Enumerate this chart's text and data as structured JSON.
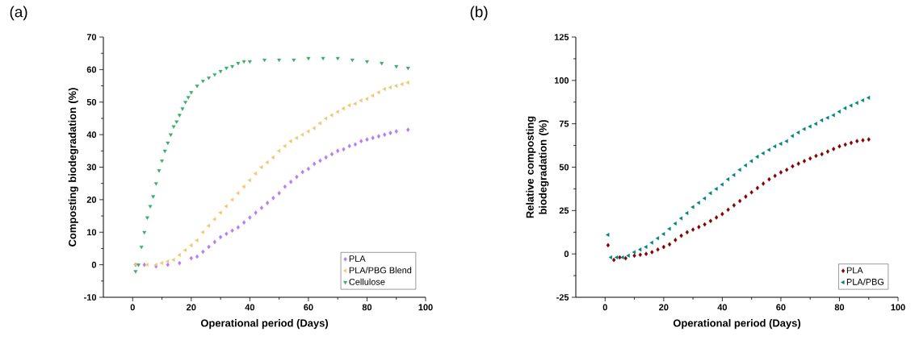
{
  "chart_data": [
    {
      "type": "scatter",
      "xlabel": "Operational period (Days)",
      "ylabel": "Composting biodegradation (%)",
      "annotations": [
        "(a)"
      ],
      "xlim": [
        -10,
        100
      ],
      "ylim": [
        -10,
        70
      ],
      "xticks": [
        0,
        20,
        40,
        60,
        80,
        100
      ],
      "yticks": [
        -10,
        0,
        10,
        20,
        30,
        40,
        50,
        60,
        70
      ],
      "legend": "bottom right",
      "series": [
        {
          "name": "PLA",
          "color": "#b77cf5",
          "marker": "diamond",
          "x": [
            1,
            4,
            8,
            12,
            16,
            20,
            22,
            24,
            26,
            28,
            30,
            32,
            34,
            36,
            38,
            40,
            42,
            44,
            46,
            48,
            50,
            52,
            54,
            56,
            58,
            60,
            62,
            64,
            66,
            68,
            70,
            72,
            74,
            76,
            78,
            80,
            82,
            84,
            86,
            88,
            90,
            94
          ],
          "values": [
            0,
            0,
            -0.5,
            0,
            0.5,
            2,
            2.5,
            4,
            5.5,
            7,
            8.5,
            9.5,
            10.5,
            11.5,
            13,
            14.5,
            16,
            17.5,
            19,
            20.5,
            22,
            24,
            25.5,
            27,
            28.5,
            29.5,
            31,
            32,
            33,
            34,
            35,
            35.5,
            36.5,
            37,
            38,
            38.5,
            39,
            39.5,
            40,
            40.5,
            41,
            41.5
          ]
        },
        {
          "name": "PLA/PBG Blend",
          "color": "#f0c674",
          "marker": "triangle",
          "x": [
            1,
            5,
            8,
            10,
            12,
            14,
            16,
            18,
            20,
            22,
            24,
            26,
            28,
            30,
            32,
            34,
            36,
            38,
            40,
            42,
            44,
            46,
            48,
            50,
            52,
            54,
            56,
            58,
            60,
            62,
            64,
            66,
            68,
            70,
            72,
            74,
            76,
            78,
            80,
            82,
            84,
            86,
            88,
            90,
            92,
            94
          ],
          "values": [
            0,
            0,
            0,
            0.5,
            1,
            1.5,
            3,
            4.5,
            6,
            7.5,
            10,
            12,
            14,
            16,
            18,
            20,
            22,
            24,
            26,
            28,
            30,
            31.5,
            33,
            35,
            36.5,
            38,
            39,
            40,
            41,
            42,
            43.5,
            45,
            46,
            47,
            48,
            49,
            49.5,
            50.5,
            51,
            52,
            53,
            54,
            54.5,
            55,
            55.5,
            56
          ]
        },
        {
          "name": "Cellulose",
          "color": "#3aab6b",
          "marker": "triangle",
          "x": [
            1,
            2,
            3,
            4,
            5,
            6,
            7,
            8,
            9,
            10,
            11,
            12,
            13,
            14,
            15,
            16,
            17,
            18,
            19,
            20,
            22,
            24,
            26,
            28,
            30,
            32,
            34,
            36,
            38,
            40,
            45,
            50,
            55,
            60,
            65,
            70,
            75,
            80,
            85,
            90,
            94
          ],
          "values": [
            -2,
            0,
            5.5,
            10,
            14.5,
            18,
            21,
            25,
            29,
            32,
            35,
            37.5,
            40,
            42.5,
            44,
            46,
            48,
            50,
            51.5,
            53,
            55,
            56.5,
            57.5,
            58.5,
            59.5,
            60.5,
            61,
            62,
            62.5,
            62.5,
            63,
            63,
            63,
            63.5,
            63.5,
            63.5,
            63,
            62.5,
            62,
            61,
            60.5
          ]
        }
      ]
    },
    {
      "type": "scatter",
      "xlabel": "Operational period (Days)",
      "ylabel": "Relative composting biodegradation (%)",
      "annotations": [
        "(b)"
      ],
      "xlim": [
        -10,
        100
      ],
      "ylim": [
        -25,
        125
      ],
      "xticks": [
        0,
        20,
        40,
        60,
        80,
        100
      ],
      "yticks": [
        -25,
        0,
        25,
        50,
        75,
        100,
        125
      ],
      "legend": "bottom right",
      "series": [
        {
          "name": "PLA",
          "color": "#800000",
          "marker": "diamond",
          "x": [
            1,
            3,
            5,
            7,
            10,
            12,
            14,
            16,
            18,
            20,
            22,
            24,
            26,
            28,
            30,
            32,
            34,
            36,
            38,
            40,
            42,
            44,
            46,
            48,
            50,
            52,
            54,
            56,
            58,
            60,
            62,
            64,
            66,
            68,
            70,
            72,
            74,
            76,
            78,
            80,
            82,
            84,
            86,
            88,
            90
          ],
          "values": [
            5,
            -3.5,
            -2,
            -2.5,
            -1,
            -0.5,
            0,
            1,
            2.5,
            4,
            5.5,
            8,
            10.5,
            12.5,
            14,
            15.5,
            17,
            19,
            21,
            23,
            25.5,
            28,
            30.5,
            33,
            35.5,
            38,
            40.5,
            43,
            45,
            47,
            48.5,
            50.5,
            52,
            53.5,
            55,
            56.5,
            57.5,
            59,
            60.5,
            62,
            63,
            64,
            65,
            65.5,
            66
          ]
        },
        {
          "name": "PLA/PBG",
          "color": "#008080",
          "marker": "triangle",
          "x": [
            1,
            2,
            4,
            6,
            8,
            10,
            12,
            14,
            16,
            18,
            20,
            22,
            24,
            26,
            28,
            30,
            32,
            34,
            36,
            38,
            40,
            42,
            44,
            46,
            48,
            50,
            52,
            54,
            56,
            58,
            60,
            62,
            64,
            66,
            68,
            70,
            72,
            74,
            76,
            78,
            80,
            82,
            84,
            86,
            88,
            90
          ],
          "values": [
            11,
            -2,
            -2,
            -2,
            -1,
            1,
            2.5,
            4,
            6.5,
            9,
            11.5,
            14.5,
            17.5,
            20.5,
            23.5,
            27,
            29.5,
            32,
            35,
            37.5,
            40,
            43,
            45.5,
            48.5,
            51,
            53.5,
            56,
            58,
            60,
            62,
            63.5,
            65,
            68,
            70,
            72,
            73.5,
            75,
            77,
            78.5,
            80,
            82,
            84,
            85.5,
            87,
            88.5,
            90
          ]
        }
      ]
    }
  ]
}
